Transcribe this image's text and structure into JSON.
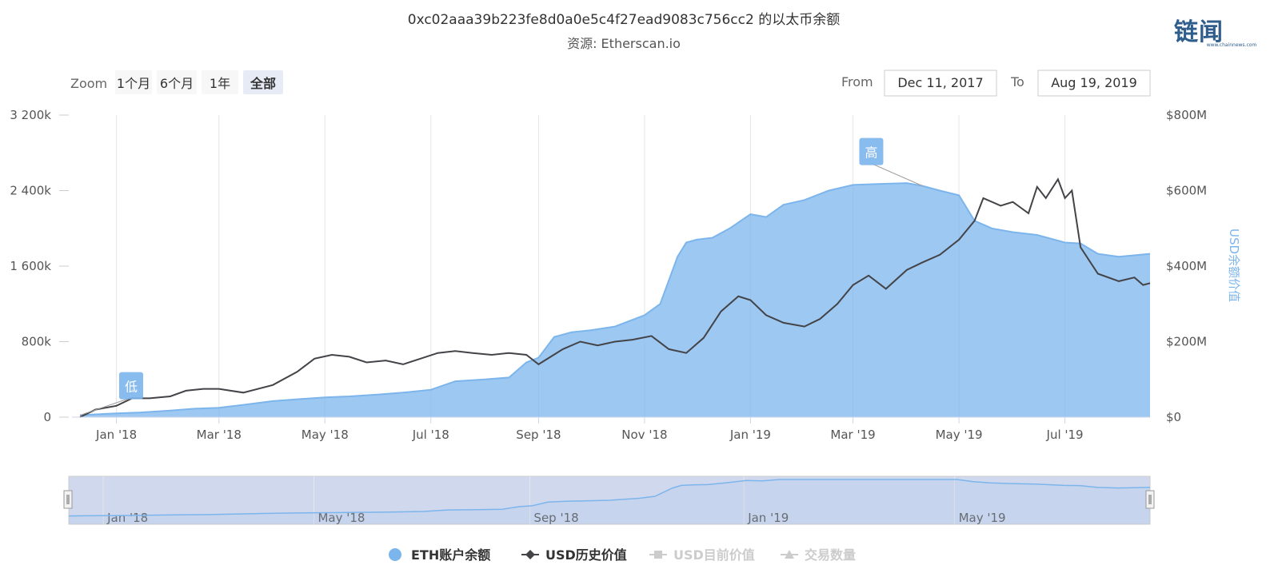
{
  "logo": {
    "text": "链闻",
    "sub": "www.chainnews.com"
  },
  "chart_data": {
    "type": "area",
    "title": "0xc02aaa39b223fe8d0a0e5c4f27ead9083c756cc2 的以太币余额",
    "subtitle": "资源: Etherscan.io",
    "zoom": {
      "label": "Zoom",
      "buttons": [
        "1个月",
        "6个月",
        "1年",
        "全部"
      ],
      "selected": "全部"
    },
    "range": {
      "from_label": "From",
      "from": "Dec 11, 2017",
      "to_label": "To",
      "to": "Aug 19, 2019"
    },
    "x_axis": {
      "ticks": [
        "Jan '18",
        "Mar '18",
        "May '18",
        "Jul '18",
        "Sep '18",
        "Nov '18",
        "Jan '19",
        "Mar '19",
        "May '19",
        "Jul '19"
      ],
      "grid": true
    },
    "y_axis_left": {
      "ticks": [
        "0",
        "800k",
        "1 600k",
        "2 400k",
        "3 200k"
      ],
      "min": 0,
      "max": 3200000
    },
    "y_axis_right": {
      "ticks": [
        "$0",
        "$200M",
        "$400M",
        "$600M",
        "$800M"
      ],
      "min": 0,
      "max": 800,
      "label": "USD余额价值"
    },
    "series": [
      {
        "name": "ETH账户余额",
        "color": "#7cb5ec",
        "axis": "left",
        "x": [
          "2017-12-11",
          "2017-12-20",
          "2018-01-01",
          "2018-01-15",
          "2018-02-01",
          "2018-02-15",
          "2018-03-01",
          "2018-03-15",
          "2018-04-01",
          "2018-04-15",
          "2018-05-01",
          "2018-05-15",
          "2018-06-01",
          "2018-06-15",
          "2018-07-01",
          "2018-07-15",
          "2018-08-01",
          "2018-08-15",
          "2018-08-25",
          "2018-09-01",
          "2018-09-10",
          "2018-09-20",
          "2018-10-01",
          "2018-10-15",
          "2018-11-01",
          "2018-11-10",
          "2018-11-20",
          "2018-11-25",
          "2018-12-01",
          "2018-12-10",
          "2018-12-20",
          "2019-01-01",
          "2019-01-10",
          "2019-01-20",
          "2019-02-01",
          "2019-02-15",
          "2019-03-01",
          "2019-03-15",
          "2019-04-01",
          "2019-04-10",
          "2019-04-20",
          "2019-05-01",
          "2019-05-10",
          "2019-05-20",
          "2019-06-01",
          "2019-06-15",
          "2019-07-01",
          "2019-07-10",
          "2019-07-20",
          "2019-08-01",
          "2019-08-19"
        ],
        "values": [
          20000,
          30000,
          40000,
          50000,
          70000,
          90000,
          100000,
          130000,
          170000,
          190000,
          210000,
          220000,
          240000,
          260000,
          290000,
          380000,
          400000,
          420000,
          580000,
          630000,
          850000,
          900000,
          920000,
          960000,
          1080000,
          1200000,
          1700000,
          1850000,
          1880000,
          1900000,
          2000000,
          2150000,
          2120000,
          2250000,
          2300000,
          2400000,
          2460000,
          2470000,
          2480000,
          2450000,
          2400000,
          2350000,
          2080000,
          2000000,
          1960000,
          1930000,
          1850000,
          1840000,
          1730000,
          1700000,
          1730000
        ]
      },
      {
        "name": "USD历史价值",
        "color": "#434348",
        "axis": "right",
        "x": [
          "2017-12-11",
          "2017-12-20",
          "2018-01-01",
          "2018-01-10",
          "2018-01-20",
          "2018-02-01",
          "2018-02-10",
          "2018-02-20",
          "2018-03-01",
          "2018-03-15",
          "2018-04-01",
          "2018-04-15",
          "2018-04-25",
          "2018-05-05",
          "2018-05-15",
          "2018-05-25",
          "2018-06-05",
          "2018-06-15",
          "2018-06-25",
          "2018-07-05",
          "2018-07-15",
          "2018-07-25",
          "2018-08-05",
          "2018-08-15",
          "2018-08-25",
          "2018-09-01",
          "2018-09-08",
          "2018-09-15",
          "2018-09-25",
          "2018-10-05",
          "2018-10-15",
          "2018-10-25",
          "2018-11-05",
          "2018-11-15",
          "2018-11-25",
          "2018-12-05",
          "2018-12-15",
          "2018-12-25",
          "2019-01-01",
          "2019-01-10",
          "2019-01-20",
          "2019-02-01",
          "2019-02-10",
          "2019-02-20",
          "2019-03-01",
          "2019-03-10",
          "2019-03-20",
          "2019-04-01",
          "2019-04-10",
          "2019-04-20",
          "2019-05-01",
          "2019-05-10",
          "2019-05-15",
          "2019-05-25",
          "2019-06-01",
          "2019-06-10",
          "2019-06-15",
          "2019-06-20",
          "2019-06-27",
          "2019-07-01",
          "2019-07-05",
          "2019-07-10",
          "2019-07-20",
          "2019-08-01",
          "2019-08-10",
          "2019-08-15",
          "2019-08-19"
        ],
        "values": [
          0,
          20,
          30,
          50,
          50,
          55,
          70,
          75,
          75,
          65,
          85,
          120,
          155,
          165,
          160,
          145,
          150,
          140,
          155,
          170,
          175,
          170,
          165,
          170,
          165,
          140,
          160,
          180,
          200,
          190,
          200,
          205,
          215,
          180,
          170,
          210,
          280,
          320,
          310,
          270,
          250,
          240,
          260,
          300,
          350,
          375,
          340,
          390,
          410,
          430,
          470,
          520,
          580,
          560,
          570,
          540,
          610,
          580,
          630,
          580,
          600,
          450,
          380,
          360,
          370,
          350,
          355
        ]
      }
    ],
    "legend": {
      "position": "bottom",
      "items": [
        {
          "name": "ETH账户余额",
          "color": "#7cb5ec",
          "symbol": "circle",
          "active": true
        },
        {
          "name": "USD历史价值",
          "color": "#434348",
          "symbol": "diamond-line",
          "active": true
        },
        {
          "name": "USD目前价值",
          "color": "#cccccc",
          "symbol": "square-line",
          "active": false
        },
        {
          "name": "交易数量",
          "color": "#cccccc",
          "symbol": "triangle-line",
          "active": false
        }
      ]
    },
    "annotations": [
      {
        "label": "低",
        "x": "2017-12-11",
        "series": "ETH账户余额"
      },
      {
        "label": "高",
        "x": "2019-04-10",
        "series": "ETH账户余额"
      }
    ],
    "navigator": {
      "ticks": [
        "Jan '18",
        "May '18",
        "Sep '18",
        "Jan '19",
        "May '19"
      ]
    }
  }
}
